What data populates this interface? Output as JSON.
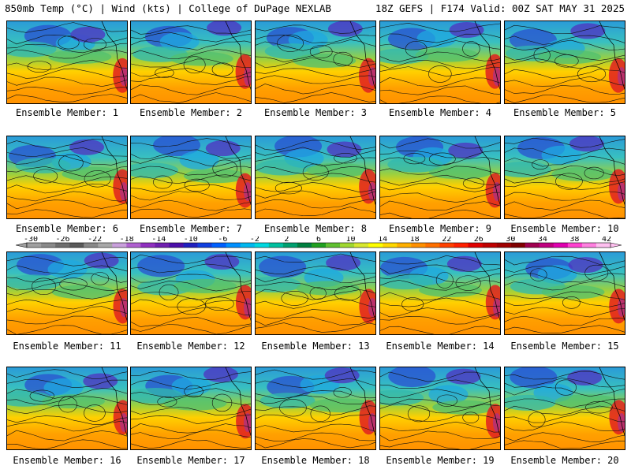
{
  "header": {
    "left": "850mb Temp (°C) | Wind (kts) | College of DuPage NEXLAB",
    "right": "18Z GEFS | F174 Valid: 00Z SAT MAY 31 2025"
  },
  "members": [
    {
      "label": "Ensemble Member: 1"
    },
    {
      "label": "Ensemble Member: 2"
    },
    {
      "label": "Ensemble Member: 3"
    },
    {
      "label": "Ensemble Member: 4"
    },
    {
      "label": "Ensemble Member: 5"
    },
    {
      "label": "Ensemble Member: 6"
    },
    {
      "label": "Ensemble Member: 7"
    },
    {
      "label": "Ensemble Member: 8"
    },
    {
      "label": "Ensemble Member: 9"
    },
    {
      "label": "Ensemble Member: 10"
    },
    {
      "label": "Ensemble Member: 11"
    },
    {
      "label": "Ensemble Member: 12"
    },
    {
      "label": "Ensemble Member: 13"
    },
    {
      "label": "Ensemble Member: 14"
    },
    {
      "label": "Ensemble Member: 15"
    },
    {
      "label": "Ensemble Member: 16"
    },
    {
      "label": "Ensemble Member: 17"
    },
    {
      "label": "Ensemble Member: 18"
    },
    {
      "label": "Ensemble Member: 19"
    },
    {
      "label": "Ensemble Member: 20"
    }
  ],
  "colorbar": {
    "ticks": [
      "-30",
      "-26",
      "-22",
      "-18",
      "-14",
      "-10",
      "-6",
      "-2",
      "2",
      "6",
      "10",
      "14",
      "18",
      "22",
      "26",
      "30",
      "34",
      "38",
      "42"
    ],
    "colors": [
      "#a0a0a0",
      "#8a8a8a",
      "#6e6e6e",
      "#5a5a5a",
      "#888888",
      "#a8a8a8",
      "#c9a0dc",
      "#b060d0",
      "#9030c0",
      "#7020b0",
      "#4b0faa",
      "#2020c0",
      "#1040e0",
      "#0060ff",
      "#0090ff",
      "#00b8f0",
      "#00d8e0",
      "#00c0a0",
      "#00a070",
      "#008040",
      "#20a020",
      "#60c030",
      "#a0d830",
      "#d8e830",
      "#ffff00",
      "#ffd800",
      "#ffb000",
      "#ff9000",
      "#ff7000",
      "#ff4000",
      "#ff2000",
      "#e00000",
      "#c00000",
      "#a00000",
      "#800000",
      "#a00050",
      "#c00080",
      "#e000b0",
      "#ff40d0",
      "#ff80e0",
      "#ffc0f0"
    ]
  }
}
